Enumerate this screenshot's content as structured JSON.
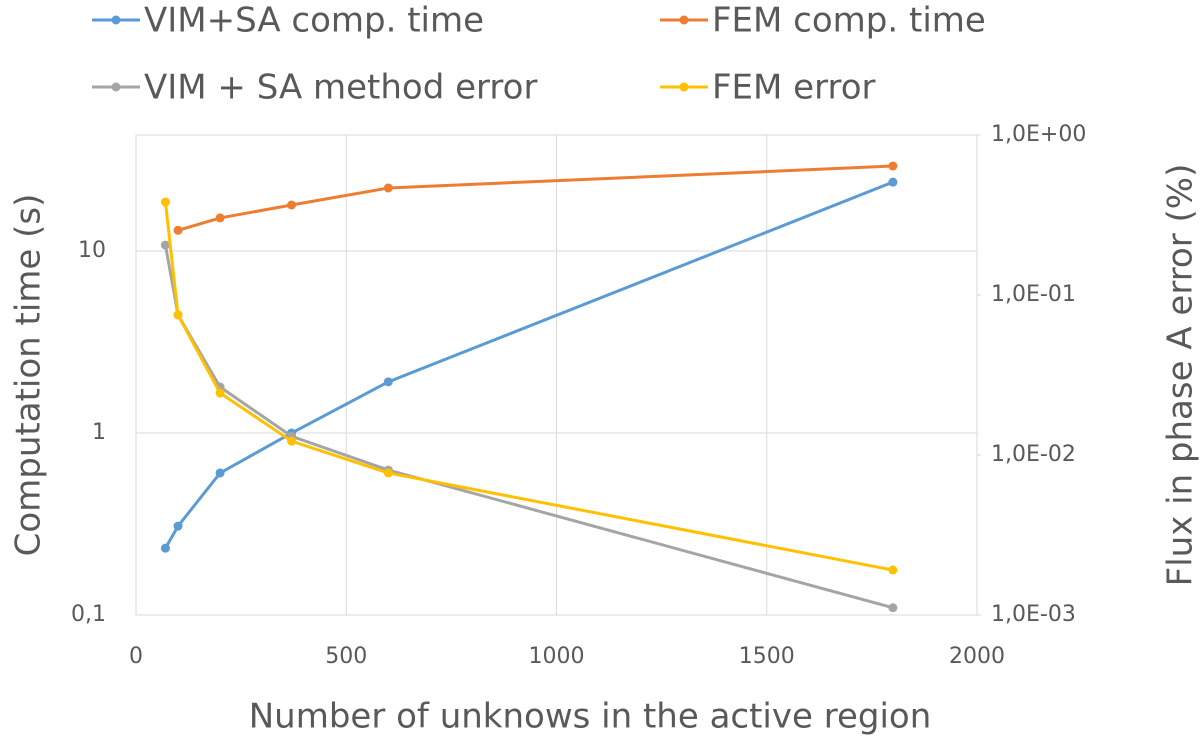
{
  "chart_data": {
    "type": "line",
    "x_label": "Number of unknows in the active region",
    "y_label": "Computation time (s)",
    "y2_label": "Flux in phase A error (%)",
    "log_y": true,
    "log_y2": true,
    "grid": true,
    "xlim": [
      0,
      2000
    ],
    "xticks": [
      0,
      500,
      1000,
      1500,
      2000
    ],
    "ylim": [
      0.1,
      43.4
    ],
    "yticks": [
      {
        "value": 0.1,
        "label": "0,1"
      },
      1,
      10
    ],
    "y2lim": [
      0.001,
      1
    ],
    "y2ticks": [
      {
        "value": 0.001,
        "label": "1,0E-03"
      },
      {
        "value": 0.01,
        "label": "1,0E-02"
      },
      {
        "value": 0.1,
        "label": "1,0E-01"
      },
      {
        "value": 1,
        "label": "1,0E+00"
      }
    ],
    "series": [
      {
        "name": "VIM+SA comp. time",
        "color": "#5b9bd5",
        "x": [
          70,
          100,
          200,
          370,
          600,
          1800
        ],
        "values": [
          0.233,
          0.308,
          0.603,
          1.0,
          1.91,
          23.9
        ]
      },
      {
        "name": "FEM comp. time",
        "color": "#ed7d31",
        "x": [
          100,
          200,
          370,
          600,
          1800
        ],
        "values": [
          13.0,
          15.2,
          17.9,
          22.2,
          29.3
        ]
      },
      {
        "name": "VIM + SA method error",
        "color": "#a5a5a5",
        "axis": "y2",
        "x": [
          70,
          100,
          200,
          370,
          600,
          1800
        ],
        "values": [
          0.205,
          0.075,
          0.0266,
          0.0131,
          0.00805,
          0.00111
        ]
      },
      {
        "name": "FEM error",
        "color": "#ffc000",
        "axis": "y2",
        "x": [
          70,
          100,
          200,
          370,
          600,
          1800
        ],
        "values": [
          0.381,
          0.075,
          0.0244,
          0.0122,
          0.00772,
          0.00191
        ]
      }
    ]
  }
}
